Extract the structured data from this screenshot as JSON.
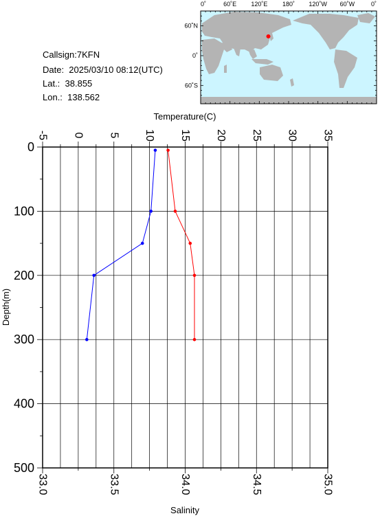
{
  "info": {
    "callsign": "Callsign:7KFN",
    "date": "Date:  2025/03/10 08:12(UTC)",
    "lat": "Lat.:  38.855",
    "lon": "Lon.:  138.562"
  },
  "map": {
    "top_labels": [
      "0˚",
      "60˚E",
      "120˚E",
      "180˚",
      "120˚W",
      "60˚W",
      "0˚"
    ],
    "left_labels": [
      "60˚N",
      "0˚",
      "60˚S"
    ],
    "ocean_color": "#ccf5ff",
    "land_color": "#b4b4b4",
    "marker_color": "#ff0000",
    "station": {
      "lat": 38.855,
      "lon": 138.562
    }
  },
  "chart_data": {
    "type": "line",
    "xlabel_top": "Temperature(C)",
    "xlabel_bottom": "Salinity",
    "ylabel": "Depth(m)",
    "temperature_axis": {
      "min": -5,
      "max": 35,
      "ticks": [
        "-5",
        "0",
        "5",
        "10",
        "15",
        "20",
        "25",
        "30",
        "35"
      ]
    },
    "salinity_axis": {
      "min": 33.0,
      "max": 35.0,
      "ticks": [
        "33.0",
        "33.5",
        "34.0",
        "34.5",
        "35.0"
      ]
    },
    "depth_axis": {
      "min": 0,
      "max": 500,
      "inverted": true,
      "ticks": [
        "0",
        "100",
        "200",
        "300",
        "400",
        "500"
      ]
    },
    "grid": true,
    "series": [
      {
        "color": "#ff0000",
        "axis": "temperature",
        "points": [
          {
            "depth": 5,
            "value": 12.6
          },
          {
            "depth": 100,
            "value": 13.6
          },
          {
            "depth": 150,
            "value": 15.7
          },
          {
            "depth": 200,
            "value": 16.3
          },
          {
            "depth": 300,
            "value": 16.3
          }
        ]
      },
      {
        "color": "#0000ff",
        "axis": "salinity",
        "points": [
          {
            "depth": 5,
            "value": 33.79
          },
          {
            "depth": 100,
            "value": 33.76
          },
          {
            "depth": 150,
            "value": 33.7
          },
          {
            "depth": 200,
            "value": 33.36
          },
          {
            "depth": 300,
            "value": 33.31
          }
        ]
      }
    ]
  }
}
